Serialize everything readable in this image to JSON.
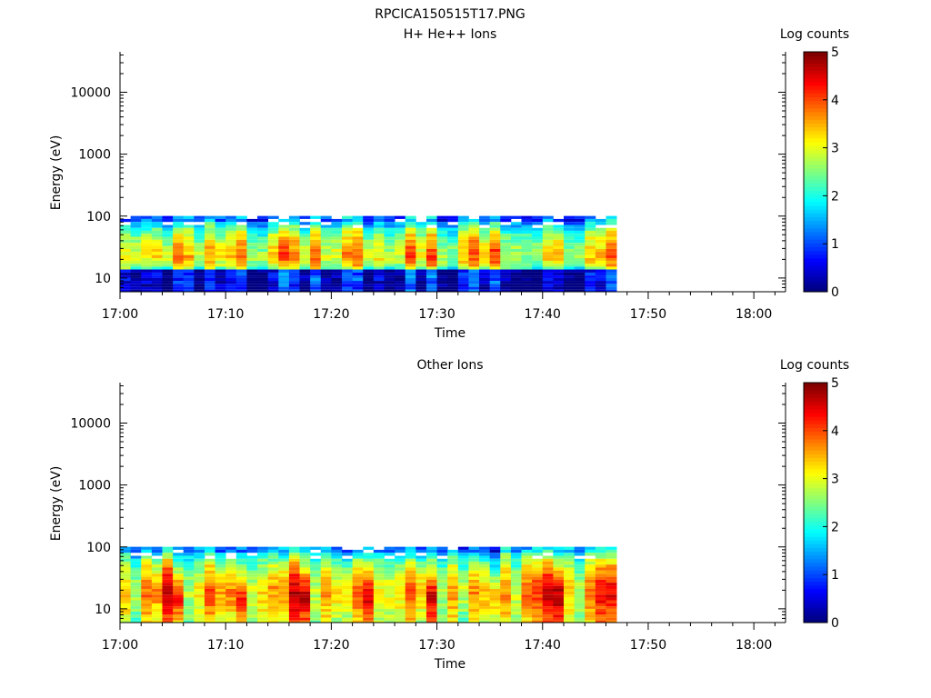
{
  "figure_title": "RPCICA150515T17.PNG",
  "colors": {
    "axis": "#000000",
    "background": "#ffffff",
    "no_data": "#ffffff"
  },
  "chart_data": [
    {
      "type": "heatmap",
      "title": "H+ He++ Ions",
      "xlabel": "Time",
      "ylabel": "Energy (eV)",
      "y_scale": "log",
      "ylim": [
        6,
        45000
      ],
      "x_tick_labels": [
        "17:00",
        "17:10",
        "17:20",
        "17:30",
        "17:40",
        "17:50",
        "18:00"
      ],
      "y_tick_labels": [
        "10",
        "100",
        "1000",
        "10000"
      ],
      "colorbar": {
        "label": "Log counts",
        "range": [
          0,
          5
        ],
        "ticks": [
          "0",
          "1",
          "2",
          "3",
          "4",
          "5"
        ],
        "colormap": "jet"
      },
      "data_time_range": [
        "17:00",
        "17:47"
      ],
      "energy_bands_eV": [
        95,
        85,
        76,
        68,
        61,
        55,
        49,
        44,
        39,
        35,
        31,
        28,
        25,
        22,
        20,
        18,
        16,
        14.5,
        13,
        11.5,
        10.5,
        9.5,
        8.5,
        7.6,
        6.8,
        6.2
      ],
      "column_profiles_log_counts": [
        [
          1.2,
          0.9,
          1.6,
          1.9,
          2.2,
          2.5,
          2.6,
          2.7,
          2.8,
          2.9,
          3.0,
          3.1,
          3.1,
          3.2,
          3.2,
          3.1,
          3.0,
          2.6,
          0.5,
          0.4,
          0.5,
          0.6,
          0.4,
          0.6,
          0.5,
          0.4
        ],
        [
          1.5,
          1.3,
          1.8,
          2.0,
          2.3,
          2.4,
          2.6,
          2.8,
          2.9,
          3.0,
          3.1,
          3.1,
          3.2,
          3.3,
          3.2,
          3.1,
          3.0,
          2.5,
          0.6,
          0.5,
          0.4,
          0.5,
          0.6,
          0.5,
          0.4,
          0.5
        ],
        [
          1.0,
          1.4,
          1.9,
          2.1,
          2.2,
          2.5,
          2.7,
          2.8,
          2.9,
          3.0,
          3.1,
          3.2,
          3.3,
          3.2,
          3.2,
          3.0,
          2.9,
          2.6,
          0.4,
          0.6,
          0.5,
          0.5,
          0.5,
          0.4,
          0.6,
          0.4
        ],
        [
          1.6,
          1.2,
          1.7,
          2.0,
          2.4,
          2.6,
          2.7,
          2.9,
          3.0,
          3.1,
          3.2,
          3.3,
          3.4,
          3.4,
          3.3,
          3.1,
          3.0,
          2.4,
          0.5,
          0.7,
          0.6,
          0.6,
          0.4,
          0.5,
          0.5,
          0.6
        ],
        [
          1.3,
          1.5,
          1.9,
          2.2,
          2.5,
          2.7,
          2.8,
          3.0,
          3.1,
          3.2,
          3.3,
          3.4,
          3.5,
          3.5,
          3.4,
          3.2,
          3.1,
          2.6,
          0.6,
          0.5,
          0.5,
          0.7,
          0.6,
          0.5,
          0.4,
          0.5
        ],
        [
          1.4,
          1.1,
          1.8,
          2.1,
          2.4,
          2.6,
          2.9,
          3.1,
          3.2,
          3.3,
          3.4,
          3.6,
          3.6,
          3.7,
          3.6,
          3.4,
          3.2,
          2.7,
          0.7,
          0.6,
          0.8,
          0.6,
          0.7,
          0.6,
          0.5,
          0.6
        ]
      ]
    },
    {
      "type": "heatmap",
      "title": "Other Ions",
      "xlabel": "Time",
      "ylabel": "Energy (eV)",
      "y_scale": "log",
      "ylim": [
        6,
        45000
      ],
      "x_tick_labels": [
        "17:00",
        "17:10",
        "17:20",
        "17:30",
        "17:40",
        "17:50",
        "18:00"
      ],
      "y_tick_labels": [
        "10",
        "100",
        "1000",
        "10000"
      ],
      "colorbar": {
        "label": "Log counts",
        "range": [
          0,
          5
        ],
        "ticks": [
          "0",
          "1",
          "2",
          "3",
          "4",
          "5"
        ],
        "colormap": "jet"
      },
      "data_time_range": [
        "17:00",
        "17:47"
      ],
      "energy_bands_eV": [
        95,
        85,
        76,
        68,
        61,
        55,
        49,
        44,
        39,
        35,
        31,
        28,
        25,
        22,
        20,
        18,
        16,
        14.5,
        13,
        11.5,
        10.5,
        9.5,
        8.5,
        7.6,
        6.8,
        6.2
      ],
      "column_profiles_log_counts": [
        [
          1.4,
          1.1,
          1.8,
          2.0,
          2.2,
          2.3,
          2.4,
          2.5,
          2.6,
          2.7,
          2.8,
          2.9,
          2.9,
          3.0,
          3.0,
          3.0,
          3.0,
          3.0,
          2.9,
          2.9,
          2.9,
          2.9,
          2.8,
          2.8,
          2.7,
          2.7
        ],
        [
          1.5,
          1.3,
          1.9,
          2.1,
          2.3,
          2.4,
          2.6,
          2.7,
          2.8,
          2.9,
          3.0,
          3.1,
          3.2,
          3.2,
          3.3,
          3.3,
          3.3,
          3.3,
          3.2,
          3.2,
          3.1,
          3.1,
          3.0,
          3.0,
          2.9,
          2.9
        ],
        [
          1.1,
          1.5,
          2.0,
          2.2,
          2.4,
          2.6,
          2.8,
          2.9,
          3.0,
          3.1,
          3.2,
          3.3,
          3.4,
          3.5,
          3.5,
          3.5,
          3.5,
          3.4,
          3.4,
          3.3,
          3.3,
          3.2,
          3.1,
          3.1,
          3.0,
          3.0
        ],
        [
          1.6,
          1.3,
          1.8,
          2.1,
          2.5,
          2.7,
          2.9,
          3.0,
          3.2,
          3.3,
          3.4,
          3.5,
          3.6,
          3.7,
          3.8,
          3.8,
          3.8,
          3.7,
          3.7,
          3.6,
          3.5,
          3.5,
          3.4,
          3.3,
          3.3,
          3.2
        ],
        [
          1.3,
          1.6,
          2.0,
          2.3,
          2.6,
          2.8,
          3.0,
          3.2,
          3.3,
          3.5,
          3.6,
          3.7,
          3.8,
          3.9,
          4.0,
          4.0,
          4.0,
          3.9,
          3.9,
          3.8,
          3.7,
          3.6,
          3.5,
          3.5,
          3.4,
          3.3
        ],
        [
          1.2,
          1.0,
          1.5,
          1.8,
          2.0,
          2.2,
          2.4,
          2.6,
          2.8,
          3.0,
          3.2,
          3.4,
          3.6,
          3.8,
          4.0,
          4.1,
          4.2,
          4.2,
          4.1,
          4.0,
          3.9,
          3.8,
          3.7,
          3.6,
          3.5,
          3.4
        ]
      ]
    }
  ]
}
